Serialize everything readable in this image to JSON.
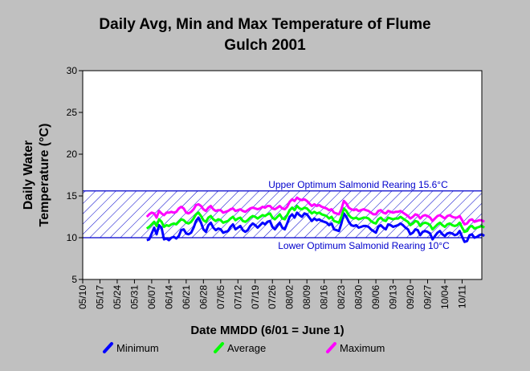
{
  "chart_data": {
    "type": "line",
    "title_line1": "Daily Avg, Min and Max Temperature of Flume",
    "title_line2": "Gulch 2001",
    "xlabel": "Date MMDD (6/01 = June 1)",
    "ylabel_line1": "Daily Water",
    "ylabel_line2": "Temperature (°C)",
    "ylim": [
      5,
      30
    ],
    "yticks": [
      5,
      10,
      15,
      20,
      25,
      30
    ],
    "x_tick_labels": [
      "05/10",
      "05/17",
      "05/24",
      "05/31",
      "06/07",
      "06/14",
      "06/21",
      "06/28",
      "07/05",
      "07/12",
      "07/19",
      "07/26",
      "08/02",
      "08/09",
      "08/16",
      "08/23",
      "08/30",
      "09/06",
      "09/13",
      "09/20",
      "09/27",
      "10/04",
      "10/11"
    ],
    "x_tick_day_of_year": [
      130,
      137,
      144,
      151,
      158,
      165,
      172,
      179,
      186,
      193,
      200,
      207,
      214,
      221,
      228,
      235,
      242,
      249,
      256,
      263,
      270,
      277,
      284
    ],
    "x_range_day_of_year": [
      130,
      292
    ],
    "grid": false,
    "reference_band": {
      "lower": 10,
      "upper": 15.6,
      "upper_label": "Upper Optimum Salmonid Rearing 15.6°C",
      "lower_label": "Lower Optimum Salmonid Rearing 10°C",
      "color": "#0000cc"
    },
    "legend_position": "bottom",
    "series": [
      {
        "name": "Minimum",
        "color": "#0000ff",
        "day_start": 156,
        "values": [
          9.7,
          9.8,
          10.5,
          11.2,
          10.4,
          11.5,
          11.2,
          9.8,
          9.9,
          9.7,
          10.0,
          10.1,
          9.9,
          10.2,
          10.9,
          11.0,
          10.5,
          10.4,
          10.6,
          11.2,
          12.0,
          12.4,
          11.8,
          11.0,
          10.7,
          11.5,
          11.8,
          11.2,
          10.9,
          11.1,
          11.0,
          10.6,
          10.7,
          10.8,
          11.3,
          11.6,
          11.0,
          11.2,
          11.4,
          10.9,
          10.7,
          10.9,
          11.4,
          11.7,
          11.5,
          11.2,
          11.5,
          11.8,
          11.6,
          11.9,
          12.0,
          11.3,
          11.0,
          11.4,
          11.8,
          11.2,
          11.0,
          11.7,
          12.5,
          12.8,
          12.4,
          13.0,
          12.7,
          12.5,
          12.9,
          12.8,
          12.4,
          12.0,
          12.3,
          12.1,
          12.2,
          12.0,
          11.9,
          11.8,
          11.5,
          11.7,
          11.0,
          10.9,
          10.8,
          11.7,
          12.9,
          12.5,
          11.9,
          11.5,
          11.4,
          11.5,
          11.2,
          11.3,
          11.4,
          11.4,
          11.3,
          11.0,
          10.8,
          10.6,
          11.3,
          11.5,
          11.2,
          11.0,
          11.6,
          11.5,
          11.3,
          11.4,
          11.5,
          11.7,
          11.5,
          11.2,
          11.0,
          10.4,
          10.6,
          11.0,
          10.9,
          10.3,
          10.7,
          10.8,
          10.7,
          10.5,
          9.8,
          10.2,
          10.6,
          10.8,
          10.4,
          10.2,
          10.5,
          10.6,
          10.5,
          10.3,
          10.4,
          10.8,
          10.1,
          9.5,
          9.6,
          10.3,
          10.4,
          10.0,
          10.1,
          10.3,
          10.4,
          10.2
        ]
      },
      {
        "name": "Average",
        "color": "#00ff00",
        "day_start": 156,
        "values": [
          11.1,
          11.3,
          11.6,
          11.9,
          11.4,
          12.2,
          11.9,
          11.3,
          11.5,
          11.4,
          11.6,
          11.7,
          11.6,
          11.9,
          12.2,
          12.1,
          11.8,
          11.7,
          11.9,
          12.3,
          12.8,
          13.0,
          12.6,
          12.1,
          11.9,
          12.4,
          12.6,
          12.2,
          12.0,
          12.2,
          12.1,
          11.8,
          11.9,
          12.0,
          12.3,
          12.5,
          12.1,
          12.3,
          12.4,
          12.0,
          11.9,
          12.1,
          12.4,
          12.6,
          12.5,
          12.3,
          12.5,
          12.7,
          12.6,
          12.8,
          12.9,
          12.4,
          12.2,
          12.5,
          12.8,
          12.3,
          12.2,
          12.7,
          13.3,
          13.6,
          13.3,
          13.8,
          13.5,
          13.4,
          13.6,
          13.5,
          13.2,
          12.9,
          13.1,
          12.9,
          13.0,
          12.8,
          12.7,
          12.6,
          12.3,
          12.5,
          12.0,
          11.9,
          11.8,
          12.5,
          13.5,
          13.2,
          12.7,
          12.4,
          12.3,
          12.4,
          12.2,
          12.3,
          12.4,
          12.4,
          12.3,
          12.0,
          11.8,
          11.7,
          12.2,
          12.4,
          12.1,
          12.0,
          12.4,
          12.3,
          12.2,
          12.3,
          12.3,
          12.5,
          12.3,
          12.1,
          11.9,
          11.5,
          11.7,
          12.0,
          11.9,
          11.4,
          11.7,
          11.8,
          11.7,
          11.5,
          11.0,
          11.3,
          11.6,
          11.8,
          11.5,
          11.3,
          11.6,
          11.7,
          11.5,
          11.4,
          11.5,
          11.8,
          11.2,
          10.7,
          10.8,
          11.3,
          11.4,
          11.1,
          11.2,
          11.3,
          11.4,
          11.2
        ]
      },
      {
        "name": "Maximum",
        "color": "#ff00ff",
        "day_start": 156,
        "values": [
          12.5,
          12.8,
          13.0,
          12.9,
          12.4,
          13.2,
          12.9,
          12.7,
          13.0,
          13.0,
          13.1,
          13.0,
          13.1,
          13.5,
          13.7,
          13.5,
          13.0,
          12.9,
          13.1,
          13.4,
          13.9,
          14.0,
          13.8,
          13.4,
          13.2,
          13.6,
          13.8,
          13.4,
          13.2,
          13.3,
          13.3,
          13.0,
          13.1,
          13.2,
          13.4,
          13.5,
          13.2,
          13.3,
          13.4,
          13.2,
          13.1,
          13.3,
          13.5,
          13.6,
          13.5,
          13.4,
          13.5,
          13.7,
          13.6,
          13.8,
          13.8,
          13.5,
          13.4,
          13.6,
          13.8,
          13.5,
          13.4,
          13.7,
          14.3,
          14.6,
          14.4,
          14.8,
          14.6,
          14.5,
          14.6,
          14.4,
          14.1,
          13.8,
          14.0,
          13.8,
          13.9,
          13.7,
          13.6,
          13.5,
          13.3,
          13.4,
          13.0,
          12.9,
          12.8,
          13.4,
          14.4,
          14.1,
          13.6,
          13.4,
          13.3,
          13.4,
          13.2,
          13.3,
          13.4,
          13.3,
          13.2,
          13.0,
          12.8,
          12.8,
          13.2,
          13.3,
          13.0,
          12.9,
          13.2,
          13.1,
          13.0,
          13.1,
          13.1,
          13.2,
          13.0,
          12.8,
          12.6,
          12.3,
          12.5,
          12.8,
          12.7,
          12.3,
          12.6,
          12.7,
          12.6,
          12.4,
          12.0,
          12.3,
          12.6,
          12.7,
          12.5,
          12.3,
          12.6,
          12.7,
          12.5,
          12.4,
          12.4,
          12.6,
          12.1,
          11.6,
          11.7,
          12.1,
          12.2,
          11.9,
          12.0,
          12.1,
          12.1,
          11.9
        ]
      }
    ]
  }
}
